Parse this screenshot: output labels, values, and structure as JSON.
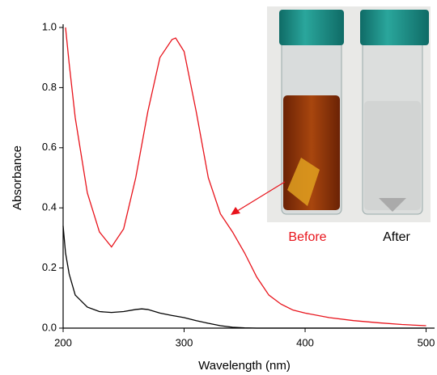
{
  "chart_data": {
    "type": "line",
    "x_label": "Wavelength (nm)",
    "y_label": "Absorbance",
    "x": [
      200,
      202,
      205,
      210,
      220,
      230,
      240,
      250,
      260,
      265,
      270,
      280,
      290,
      293,
      300,
      310,
      320,
      330,
      340,
      350,
      360,
      370,
      380,
      390,
      400,
      420,
      440,
      460,
      480,
      500
    ],
    "series": [
      {
        "name": "Before",
        "color": "#e8131b",
        "values": [
          null,
          1.0,
          0.88,
          0.7,
          0.45,
          0.32,
          0.27,
          0.33,
          0.5,
          0.61,
          0.72,
          0.9,
          0.96,
          0.965,
          0.92,
          0.72,
          0.5,
          0.38,
          0.32,
          0.25,
          0.17,
          0.11,
          0.08,
          0.06,
          0.05,
          0.035,
          0.025,
          0.018,
          0.012,
          0.008
        ]
      },
      {
        "name": "After",
        "color": "#000000",
        "values": [
          0.34,
          0.25,
          0.18,
          0.11,
          0.07,
          0.055,
          0.052,
          0.055,
          0.062,
          0.064,
          0.062,
          0.05,
          0.042,
          0.04,
          0.035,
          0.025,
          0.016,
          0.008,
          0.003,
          0.001,
          0.0,
          0.0,
          0.0,
          0.0,
          0.0,
          0.0,
          0.0,
          0.0,
          0.0,
          0.0
        ]
      }
    ],
    "xlim": [
      200,
      507
    ],
    "ylim": [
      0,
      1.0
    ],
    "xticks": [
      200,
      300,
      400,
      500
    ],
    "yticks": [
      {
        "value": 0,
        "label": "0.0"
      },
      0.2,
      0.4,
      0.6,
      0.8,
      {
        "value": 1.0,
        "label": "1.0"
      }
    ]
  }
}
